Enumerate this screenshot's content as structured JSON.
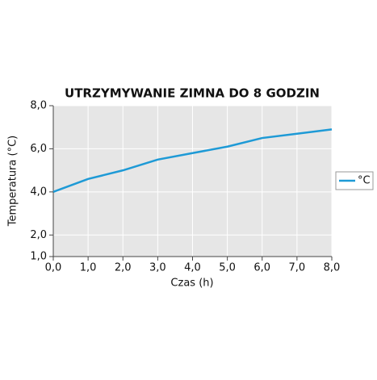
{
  "chart_data": {
    "type": "line",
    "title": "UTRZYMYWANIE ZIMNA DO 8 GODZIN",
    "xlabel": "Czas (h)",
    "ylabel": "Temperatura (°C)",
    "x": [
      0,
      1,
      2,
      3,
      4,
      5,
      6,
      7,
      8
    ],
    "series": [
      {
        "name": "°C",
        "color": "#1e9ad6",
        "values": [
          4.0,
          4.6,
          5.0,
          5.5,
          5.8,
          6.1,
          6.5,
          6.7,
          6.9
        ]
      }
    ],
    "xlim": [
      0,
      8
    ],
    "xticks": [
      {
        "value": 0,
        "label": "0,0"
      },
      {
        "value": 1,
        "label": "1,0"
      },
      {
        "value": 2,
        "label": "2,0"
      },
      {
        "value": 3,
        "label": "3,0"
      },
      {
        "value": 4,
        "label": "4,0"
      },
      {
        "value": 5,
        "label": "5,0"
      },
      {
        "value": 6,
        "label": "6,0"
      },
      {
        "value": 7,
        "label": "7,0"
      },
      {
        "value": 8,
        "label": "8,0"
      }
    ],
    "ylim": [
      1,
      8
    ],
    "yticks": [
      {
        "value": 1,
        "label": "1,0"
      },
      {
        "value": 2,
        "label": "2,0"
      },
      {
        "value": 4,
        "label": "4,0"
      },
      {
        "value": 6,
        "label": "6,0"
      },
      {
        "value": 8,
        "label": "8,0"
      }
    ],
    "grid": true,
    "legend": "right"
  }
}
